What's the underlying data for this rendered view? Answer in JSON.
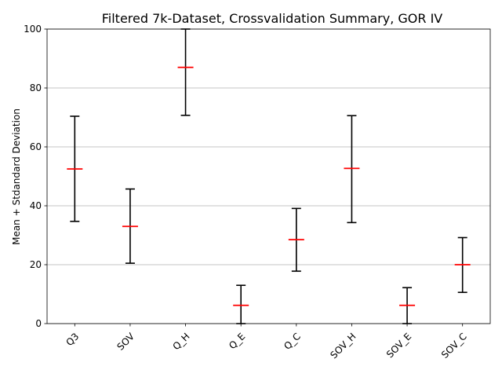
{
  "chart_data": {
    "type": "errorbar",
    "title": "Filtered 7k-Dataset, Crossvalidation Summary, GOR IV",
    "xlabel": "",
    "ylabel": "Mean + Stdandard Deviation",
    "ylim": [
      0,
      100
    ],
    "yticks": [
      0,
      20,
      40,
      60,
      80,
      100
    ],
    "grid": "horizontal",
    "categories": [
      "Q3",
      "SOV",
      "Q_H",
      "Q_E",
      "Q_C",
      "SOV_H",
      "SOV_E",
      "SOV_C"
    ],
    "series": [
      {
        "mean": [
          52.5,
          33.0,
          87.0,
          6.2,
          28.5,
          52.7,
          6.2,
          20.0
        ],
        "lower": [
          34.7,
          20.5,
          70.7,
          0.0,
          17.8,
          34.3,
          0.0,
          10.6
        ],
        "upper": [
          70.4,
          45.7,
          100.0,
          13.0,
          39.1,
          70.6,
          12.2,
          29.2
        ]
      }
    ],
    "colors": {
      "errorbar": "#000000",
      "mean": "#ff0000",
      "grid": "#b0b0b0"
    }
  }
}
